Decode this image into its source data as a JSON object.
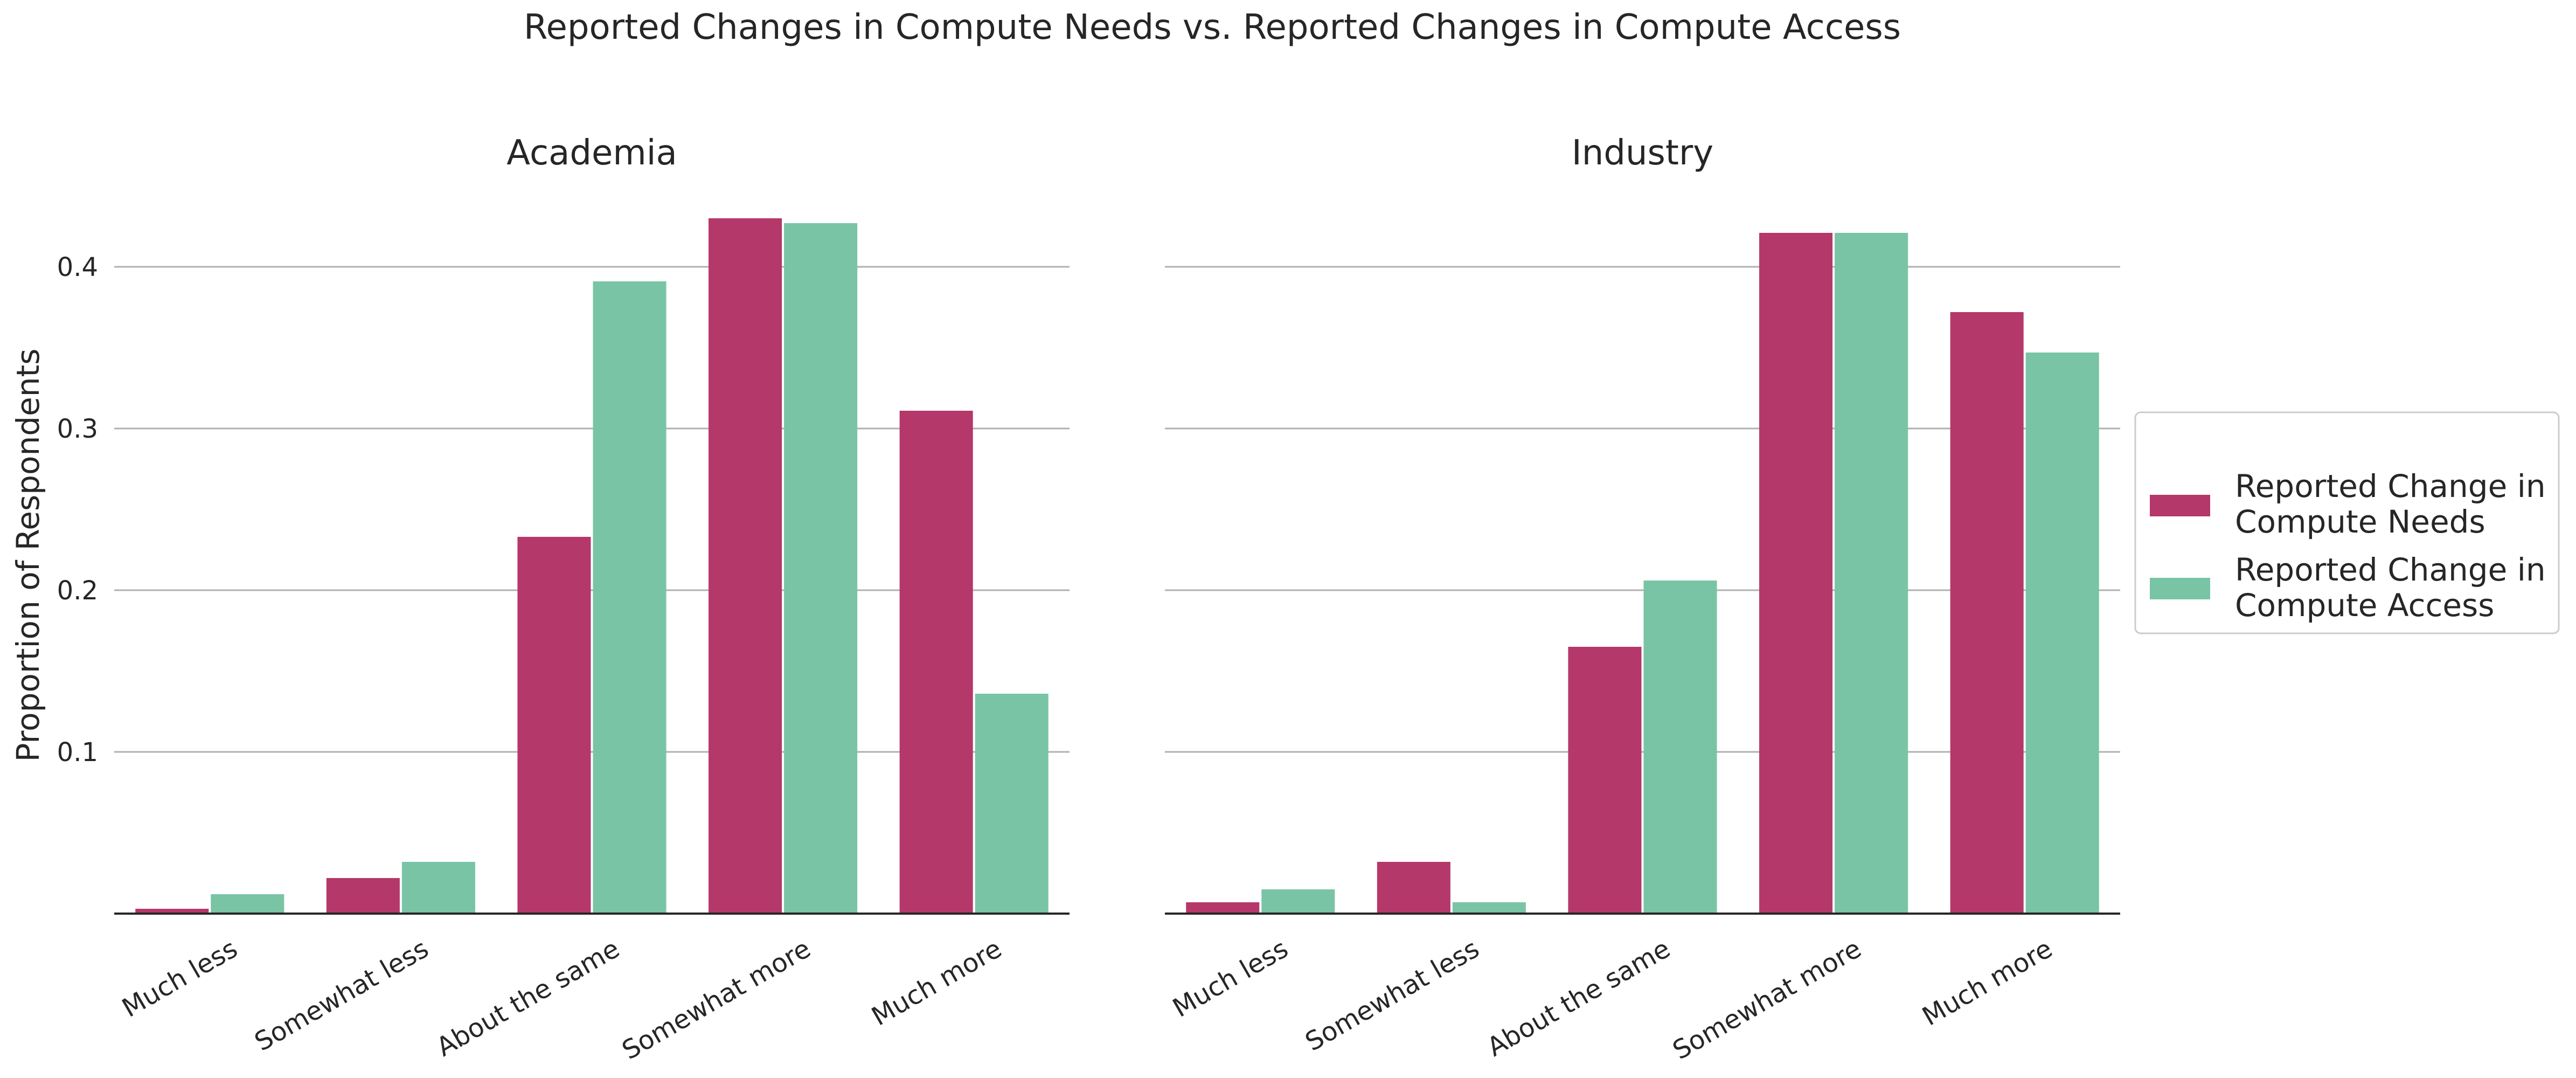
{
  "figure": {
    "title": "Reported Changes in Compute Needs vs. Reported Changes in Compute Access",
    "ylabel": "Proportion of Respondents"
  },
  "legend": {
    "placement": "center-right",
    "entries": [
      {
        "label_line1": "Reported Change in",
        "label_line2": "Compute Needs",
        "color": "#b5386a"
      },
      {
        "label_line1": "Reported Change in",
        "label_line2": "Compute Access",
        "color": "#7ac4a6"
      }
    ]
  },
  "colors": {
    "needs": "#b5386a",
    "access": "#7ac4a6",
    "grid": "#b0b0b0",
    "axis": "#262626"
  },
  "chart_data": [
    {
      "type": "bar",
      "title": "Academia",
      "categories": [
        "Much less",
        "Somewhat less",
        "About the same",
        "Somewhat more",
        "Much more"
      ],
      "series": [
        {
          "name": "Reported Change in Compute Needs",
          "values": [
            0.003,
            0.022,
            0.233,
            0.43,
            0.311
          ]
        },
        {
          "name": "Reported Change in Compute Access",
          "values": [
            0.012,
            0.032,
            0.391,
            0.427,
            0.136
          ]
        }
      ],
      "ylabel": "Proportion of Respondents",
      "ylim": [
        0,
        0.445
      ],
      "yticks": [
        "0.1",
        "0.2",
        "0.3",
        "0.4"
      ],
      "grid": true
    },
    {
      "type": "bar",
      "title": "Industry",
      "categories": [
        "Much less",
        "Somewhat less",
        "About the same",
        "Somewhat more",
        "Much more"
      ],
      "series": [
        {
          "name": "Reported Change in Compute Needs",
          "values": [
            0.007,
            0.032,
            0.165,
            0.421,
            0.372
          ]
        },
        {
          "name": "Reported Change in Compute Access",
          "values": [
            0.015,
            0.007,
            0.206,
            0.421,
            0.347
          ]
        }
      ],
      "ylim": [
        0,
        0.445
      ],
      "yticks": [
        "0.1",
        "0.2",
        "0.3",
        "0.4"
      ],
      "grid": true
    }
  ]
}
